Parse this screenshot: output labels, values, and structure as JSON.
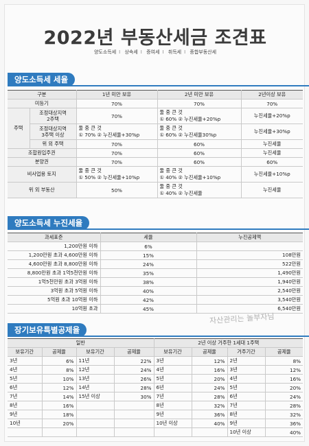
{
  "title": "2022년 부동산세금 조견표",
  "subtitle_items": [
    "양도소득세",
    "상속세",
    "증여세",
    "취득세",
    "종합부동산세"
  ],
  "sections": {
    "s1": "양도소득세 세율",
    "s2": "양도소득세 누진세율",
    "s3": "장기보유특별공제율"
  },
  "t1": {
    "headers": [
      "구분",
      "1년 미만 보유",
      "2년 미만 보유",
      "2년이상 보유"
    ],
    "rows": {
      "r1": {
        "label": "미등기",
        "c1": "70%",
        "c2": "70%",
        "c3": "70%"
      },
      "housing_label": "주택",
      "r2": {
        "label": "조정대상지역\n2주택",
        "c1": "70%",
        "c2_top": "둘 중 큰 것",
        "c2_bot": "① 60%  ② 누진세율+20%p",
        "c3": "누진세율+20%p"
      },
      "r3": {
        "label": "조정대상지역\n3주택 이상",
        "c1_top": "둘 중 큰 것",
        "c1_bot": "① 70%  ② 누진세율+30%p",
        "c2_top": "둘 중 큰 것",
        "c2_bot": "① 60%  ② 누진세율30%p",
        "c3": "누진세율+30%p"
      },
      "r4": {
        "label": "위 외 주택",
        "c1": "70%",
        "c2": "60%",
        "c3": "누진세율"
      },
      "r5": {
        "label": "조합원입주권",
        "c1": "70%",
        "c2": "60%",
        "c3": "누진세율"
      },
      "r6": {
        "label": "분양권",
        "c1": "70%",
        "c2": "60%",
        "c3": "60%"
      },
      "r7": {
        "label": "비사업용 토지",
        "c1_top": "둘 중 큰 것",
        "c1_bot": "① 50%  ② 누진세율+10%p",
        "c2_top": "둘 중 큰 것",
        "c2_bot": "① 40%  ② 누진세율+10%p",
        "c3": "누진세율+10%p"
      },
      "r8": {
        "label": "위 외 부동산",
        "c1": "50%",
        "c2_top": "둘 중 큰 것",
        "c2_bot": "① 40%  ② 누진세율",
        "c3": "누진세율"
      }
    }
  },
  "t2": {
    "headers": [
      "과세표준",
      "세율",
      "누진공제액"
    ],
    "rows": [
      [
        "1,200만원 이하",
        "6%",
        ""
      ],
      [
        "1,200만원 초과 4,600만원 이하",
        "15%",
        "108만원"
      ],
      [
        "4,600만원 초과 8,800만원 이하",
        "24%",
        "522만원"
      ],
      [
        "8,800만원 초과 1억5천만원 이하",
        "35%",
        "1,490만원"
      ],
      [
        "1억5천만원 초과 3억원 이하",
        "38%",
        "1,940만원"
      ],
      [
        "3억원 초과 5억원 이하",
        "40%",
        "2,540만원"
      ],
      [
        "5억원 초과 10억원 이하",
        "42%",
        "3,540만원"
      ],
      [
        "10억원 초과",
        "45%",
        "6,540만원"
      ]
    ]
  },
  "t3": {
    "group_general": "일반",
    "group_special": "2년 이상 거주한 1세대 1주택",
    "headers": [
      "보유기간",
      "공제율",
      "보유기간",
      "공제율",
      "보유기간",
      "공제율",
      "거주기간",
      "공제율"
    ],
    "rows": [
      [
        "3년",
        "6%",
        "11년",
        "22%",
        "3년",
        "12%",
        "2년",
        "8%"
      ],
      [
        "4년",
        "8%",
        "12년",
        "24%",
        "4년",
        "16%",
        "3년",
        "12%"
      ],
      [
        "5년",
        "10%",
        "13년",
        "26%",
        "5년",
        "20%",
        "4년",
        "16%"
      ],
      [
        "6년",
        "12%",
        "14년",
        "28%",
        "6년",
        "24%",
        "5년",
        "20%"
      ],
      [
        "7년",
        "14%",
        "15년 이상",
        "30%",
        "7년",
        "28%",
        "6년",
        "24%"
      ],
      [
        "8년",
        "16%",
        "",
        "",
        "8년",
        "32%",
        "7년",
        "28%"
      ],
      [
        "9년",
        "18%",
        "",
        "",
        "9년",
        "36%",
        "8년",
        "32%"
      ],
      [
        "10년",
        "20%",
        "",
        "",
        "10년 이상",
        "40%",
        "9년",
        "36%"
      ],
      [
        "",
        "",
        "",
        "",
        "",
        "",
        "10년 이상",
        "40%"
      ]
    ]
  },
  "watermark": "자산관리는 놀부자님"
}
